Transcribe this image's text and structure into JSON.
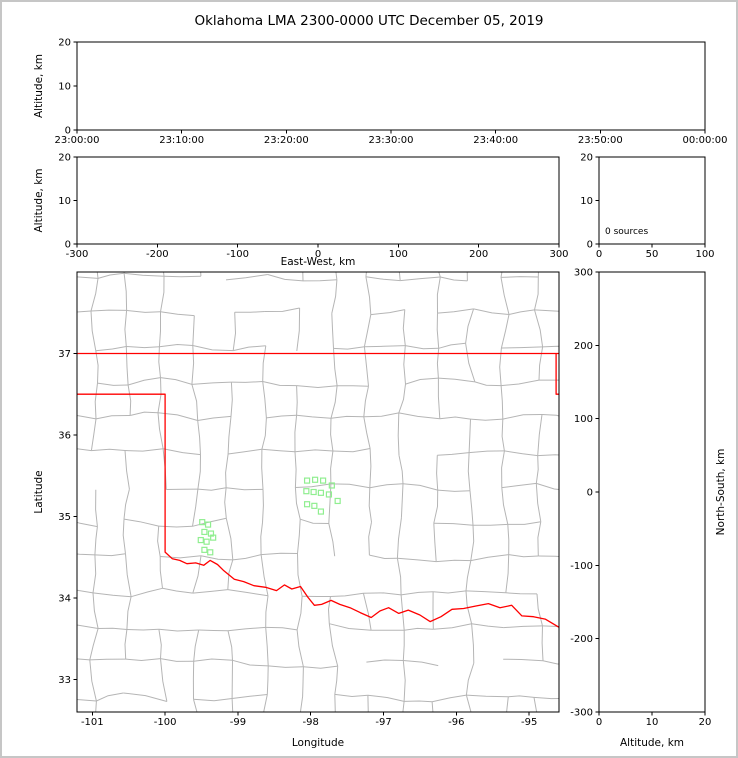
{
  "title": "Oklahoma LMA 2300-0000 UTC December 05, 2019",
  "colors": {
    "state_border": "#ff0000",
    "county_line": "#b5b5b5",
    "station_marker": "#90ee90",
    "axis": "#000000",
    "background": "#ffffff"
  },
  "chart_data": [
    {
      "id": "time_height",
      "type": "scatter",
      "description": "Altitude vs time panel, no sources plotted",
      "xlabel": "",
      "ylabel": "Altitude, km",
      "xlim": [
        0,
        3600
      ],
      "xticks": [
        0,
        600,
        1200,
        1800,
        2400,
        3000,
        3600
      ],
      "xticklabels": [
        "23:00:00",
        "23:10:00",
        "23:20:00",
        "23:30:00",
        "23:40:00",
        "23:50:00",
        "00:00:00"
      ],
      "ylim": [
        0,
        20
      ],
      "yticks": [
        0,
        10,
        20
      ],
      "yticklabels": [
        "0",
        "10",
        "20"
      ],
      "points": []
    },
    {
      "id": "ew_height",
      "type": "scatter",
      "description": "Altitude vs East-West distance panel, no sources plotted",
      "xlabel": "East-West, km",
      "ylabel": "Altitude, km",
      "xlim": [
        -300,
        300
      ],
      "xticks": [
        -300,
        -200,
        -100,
        0,
        100,
        200,
        300
      ],
      "xticklabels": [
        "-300",
        "-200",
        "-100",
        "0",
        "100",
        "200",
        "300"
      ],
      "ylim": [
        0,
        20
      ],
      "yticks": [
        0,
        10,
        20
      ],
      "yticklabels": [
        "0",
        "10",
        "20"
      ],
      "points": []
    },
    {
      "id": "source_histogram",
      "type": "line",
      "description": "Source count vs altitude histogram panel",
      "xlabel": "",
      "ylabel": "",
      "xlim": [
        0,
        100
      ],
      "xticks": [
        0,
        50,
        100
      ],
      "xticklabels": [
        "0",
        "50",
        "100"
      ],
      "ylim": [
        0,
        20
      ],
      "yticks": [
        0,
        10,
        20
      ],
      "yticklabels": [
        "0",
        "10",
        "20"
      ],
      "annotation": "0 sources",
      "points": []
    },
    {
      "id": "map",
      "type": "scatter",
      "description": "Plan-view map with county lines, state borders and LMA station markers",
      "xlabel": "Longitude",
      "ylabel": "Latitude",
      "xlim": [
        -101.21,
        -94.59
      ],
      "xticks": [
        -101,
        -100,
        -99,
        -98,
        -97,
        -96,
        -95
      ],
      "xticklabels": [
        "-101",
        "-100",
        "-99",
        "-98",
        "-97",
        "-96",
        "-95"
      ],
      "ylim": [
        32.6,
        38.0
      ],
      "yticks": [
        33,
        34,
        35,
        36,
        37
      ],
      "yticklabels": [
        "33",
        "34",
        "35",
        "36",
        "37"
      ],
      "stations": [
        [
          -99.49,
          34.93
        ],
        [
          -99.41,
          34.9
        ],
        [
          -99.46,
          34.81
        ],
        [
          -99.37,
          34.79
        ],
        [
          -99.51,
          34.71
        ],
        [
          -99.43,
          34.69
        ],
        [
          -99.34,
          34.74
        ],
        [
          -99.46,
          34.59
        ],
        [
          -99.38,
          34.56
        ],
        [
          -98.05,
          35.44
        ],
        [
          -97.94,
          35.45
        ],
        [
          -97.83,
          35.44
        ],
        [
          -98.06,
          35.31
        ],
        [
          -97.96,
          35.3
        ],
        [
          -97.86,
          35.29
        ],
        [
          -97.75,
          35.27
        ],
        [
          -98.05,
          35.15
        ],
        [
          -97.95,
          35.13
        ],
        [
          -97.86,
          35.06
        ],
        [
          -97.63,
          35.19
        ],
        [
          -97.71,
          35.38
        ]
      ],
      "state_borders": [
        {
          "name": "kansas-oklahoma",
          "points": [
            [
              -101.21,
              37.0
            ],
            [
              -94.59,
              37.0
            ]
          ]
        },
        {
          "name": "oklahoma-texas",
          "points": [
            [
              -101.21,
              36.5
            ],
            [
              -100.0,
              36.5
            ],
            [
              -100.0,
              34.563
            ],
            [
              -99.9,
              34.48
            ],
            [
              -99.8,
              34.46
            ],
            [
              -99.7,
              34.42
            ],
            [
              -99.58,
              34.43
            ],
            [
              -99.47,
              34.4
            ],
            [
              -99.38,
              34.46
            ],
            [
              -99.28,
              34.41
            ],
            [
              -99.2,
              34.34
            ],
            [
              -99.05,
              34.23
            ],
            [
              -98.92,
              34.2
            ],
            [
              -98.78,
              34.15
            ],
            [
              -98.62,
              34.13
            ],
            [
              -98.47,
              34.09
            ],
            [
              -98.36,
              34.16
            ],
            [
              -98.26,
              34.11
            ],
            [
              -98.14,
              34.14
            ],
            [
              -98.04,
              34.01
            ],
            [
              -97.95,
              33.91
            ],
            [
              -97.85,
              33.92
            ],
            [
              -97.72,
              33.97
            ],
            [
              -97.6,
              33.92
            ],
            [
              -97.46,
              33.88
            ],
            [
              -97.32,
              33.82
            ],
            [
              -97.17,
              33.76
            ],
            [
              -97.05,
              33.84
            ],
            [
              -96.93,
              33.88
            ],
            [
              -96.79,
              33.81
            ],
            [
              -96.66,
              33.85
            ],
            [
              -96.5,
              33.79
            ],
            [
              -96.36,
              33.71
            ],
            [
              -96.21,
              33.77
            ],
            [
              -96.06,
              33.86
            ],
            [
              -95.9,
              33.87
            ],
            [
              -95.74,
              33.9
            ],
            [
              -95.56,
              33.93
            ],
            [
              -95.4,
              33.88
            ],
            [
              -95.24,
              33.91
            ],
            [
              -95.1,
              33.78
            ],
            [
              -94.94,
              33.77
            ],
            [
              -94.78,
              33.74
            ],
            [
              -94.59,
              33.64
            ]
          ]
        },
        {
          "name": "missouri-arkansas",
          "points": [
            [
              -94.63,
              37.0
            ],
            [
              -94.63,
              36.5
            ],
            [
              -94.59,
              36.5
            ]
          ]
        }
      ]
    },
    {
      "id": "ns_height",
      "type": "scatter",
      "description": "North-South distance vs altitude panel, no sources plotted",
      "xlabel": "Altitude, km",
      "ylabel_right": "North-South, km",
      "xlim": [
        0,
        20
      ],
      "xticks": [
        0,
        10,
        20
      ],
      "xticklabels": [
        "0",
        "10",
        "20"
      ],
      "ylim": [
        -300,
        300
      ],
      "yticks": [
        -300,
        -200,
        -100,
        0,
        100,
        200,
        300
      ],
      "yticklabels": [
        "-300",
        "-200",
        "-100",
        "0",
        "100",
        "200",
        "300"
      ],
      "points": []
    }
  ]
}
